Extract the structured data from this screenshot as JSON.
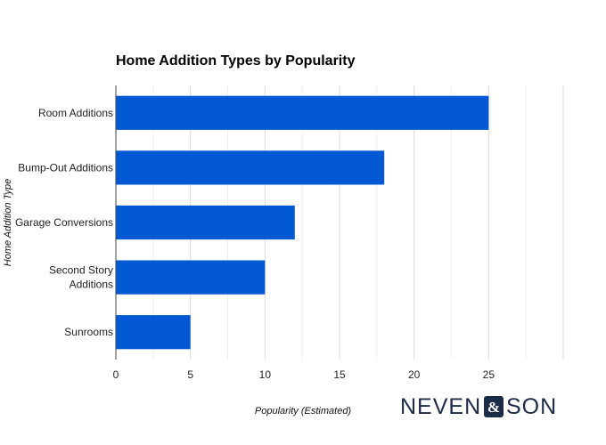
{
  "chart_data": {
    "type": "bar",
    "orientation": "horizontal",
    "title": "Home Addition Types by Popularity",
    "xlabel": "Popularity (Estimated)",
    "ylabel": "Home Addition Type",
    "categories": [
      [
        "Room Additions"
      ],
      [
        "Bump-Out Additions"
      ],
      [
        "Garage Conversions"
      ],
      [
        "Second Story",
        "Additions"
      ],
      [
        "Sunrooms"
      ]
    ],
    "values": [
      25,
      18,
      12,
      10,
      5
    ],
    "xlim": [
      0,
      30
    ],
    "xticks": [
      "0",
      "5",
      "10",
      "15",
      "20",
      "25"
    ],
    "grid": true,
    "bar_color": "#0358d4",
    "grid_color": "#e6e6e6"
  },
  "logo": {
    "left": "NEVEN",
    "mark": "&",
    "right": "SON",
    "color": "#1c2b47"
  }
}
